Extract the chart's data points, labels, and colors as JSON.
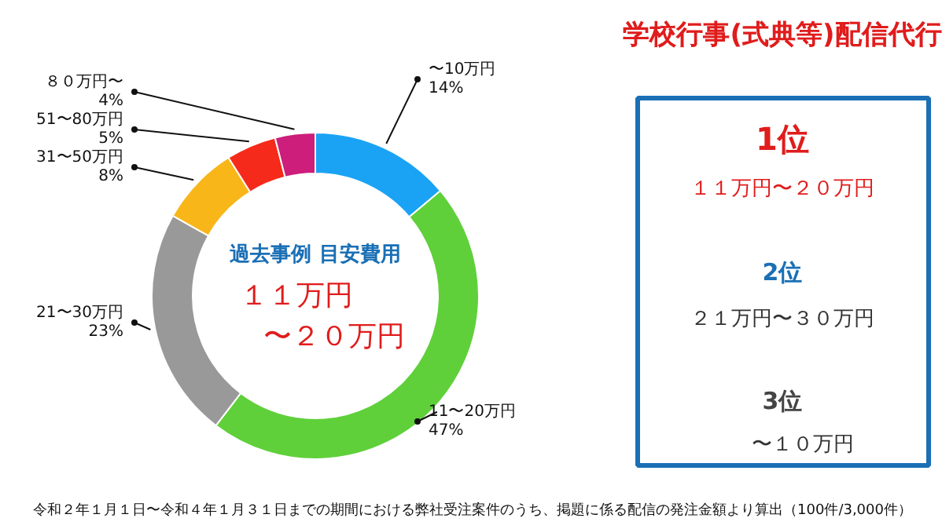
{
  "chart_data": {
    "type": "donut",
    "title": "学校行事(式典等)配信代行",
    "categories": [
      "〜10万円",
      "11〜20万円",
      "21〜30万円",
      "31〜50万円",
      "51〜80万円",
      "８０万円〜"
    ],
    "values": [
      14,
      47,
      23,
      8,
      5,
      4
    ],
    "value_labels": [
      "14%",
      "47%",
      "23%",
      "8%",
      "5%",
      "4%"
    ],
    "colors": [
      "#1aa3f5",
      "#5fd03a",
      "#999999",
      "#f8b619",
      "#f52a1b",
      "#cc1e7a"
    ],
    "annotations": [
      "過去事例 目安費用",
      "１１万円",
      "〜２０万円",
      "1位",
      "１１万円〜２０万円",
      "2位",
      "２１万円〜３０万円",
      "3位",
      "〜１０万円",
      "令和２年１月１日〜令和４年１月３１日までの期間における弊社受注案件のうち、掲題に係る配信の発注金額より算出（100件/3,000件）"
    ]
  }
}
